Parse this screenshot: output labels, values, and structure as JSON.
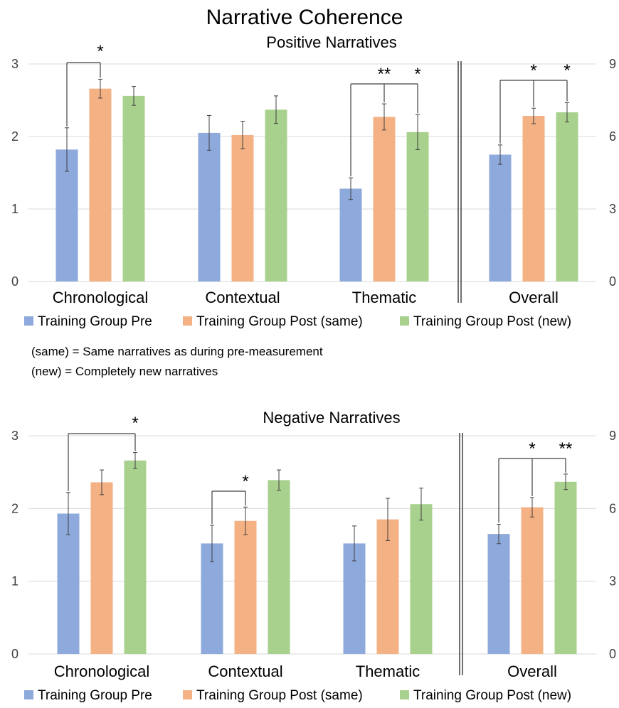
{
  "title": "Narrative Coherence",
  "colors": {
    "pre": "#8EA9DB",
    "post_same": "#F4B183",
    "post_new": "#A9D18E",
    "grid": "#D9D9D9"
  },
  "legend": [
    {
      "label": "Training Group Pre",
      "color": "#8EA9DB"
    },
    {
      "label": "Training Group Post (same)",
      "color": "#F4B183"
    },
    {
      "label": "Training Group Post (new)",
      "color": "#A9D18E"
    }
  ],
  "notes": [
    "(same) = Same narratives as during pre-measurement",
    "(new) = Completely new narratives"
  ],
  "chart_data": [
    {
      "type": "bar",
      "title": "Positive Narratives",
      "categories": [
        "Chronological",
        "Contextual",
        "Thematic",
        "Overall"
      ],
      "left_axis": {
        "ylim": [
          0,
          3
        ],
        "ticks": [
          "0",
          "1",
          "2",
          "3"
        ],
        "applies_to": [
          "Chronological",
          "Contextual",
          "Thematic"
        ]
      },
      "right_axis": {
        "ylim": [
          0,
          9
        ],
        "ticks": [
          "0",
          "3",
          "6",
          "9"
        ],
        "applies_to": [
          "Overall"
        ]
      },
      "series": [
        {
          "name": "Training Group Pre",
          "values": [
            1.82,
            2.05,
            1.28,
            5.25
          ],
          "errors": [
            0.3,
            0.24,
            0.15,
            0.4
          ]
        },
        {
          "name": "Training Group Post (same)",
          "values": [
            2.66,
            2.02,
            2.27,
            6.85
          ],
          "errors": [
            0.13,
            0.19,
            0.18,
            0.32
          ]
        },
        {
          "name": "Training Group Post (new)",
          "values": [
            2.56,
            2.37,
            2.06,
            7.0
          ],
          "errors": [
            0.13,
            0.19,
            0.24,
            0.4
          ]
        }
      ],
      "significance": [
        {
          "category": "Chronological",
          "from": 0,
          "to": [
            1
          ],
          "labels": [
            "*"
          ]
        },
        {
          "category": "Thematic",
          "from": 0,
          "to": [
            1,
            2
          ],
          "labels": [
            "**",
            "*"
          ]
        },
        {
          "category": "Overall",
          "from": 0,
          "to": [
            1,
            2
          ],
          "labels": [
            "*",
            "*"
          ]
        }
      ]
    },
    {
      "type": "bar",
      "title": "Negative Narratives",
      "categories": [
        "Chronological",
        "Contextual",
        "Thematic",
        "Overall"
      ],
      "left_axis": {
        "ylim": [
          0,
          3
        ],
        "ticks": [
          "0",
          "1",
          "2",
          "3"
        ],
        "applies_to": [
          "Chronological",
          "Contextual",
          "Thematic"
        ]
      },
      "right_axis": {
        "ylim": [
          0,
          9
        ],
        "ticks": [
          "0",
          "3",
          "6",
          "9"
        ],
        "applies_to": [
          "Overall"
        ]
      },
      "series": [
        {
          "name": "Training Group Pre",
          "values": [
            1.93,
            1.52,
            1.52,
            4.95
          ],
          "errors": [
            0.29,
            0.25,
            0.24,
            0.4
          ]
        },
        {
          "name": "Training Group Post (same)",
          "values": [
            2.36,
            1.83,
            1.85,
            6.05
          ],
          "errors": [
            0.17,
            0.19,
            0.29,
            0.4
          ]
        },
        {
          "name": "Training Group Post (new)",
          "values": [
            2.66,
            2.39,
            2.06,
            7.1
          ],
          "errors": [
            0.11,
            0.14,
            0.22,
            0.32
          ]
        }
      ],
      "significance": [
        {
          "category": "Chronological",
          "from": 0,
          "to": [
            2
          ],
          "labels": [
            "*"
          ]
        },
        {
          "category": "Contextual",
          "from": 0,
          "to": [
            1
          ],
          "labels": [
            "*"
          ]
        },
        {
          "category": "Overall",
          "from": 0,
          "to": [
            1,
            2
          ],
          "labels": [
            "*",
            "**"
          ]
        }
      ]
    }
  ]
}
